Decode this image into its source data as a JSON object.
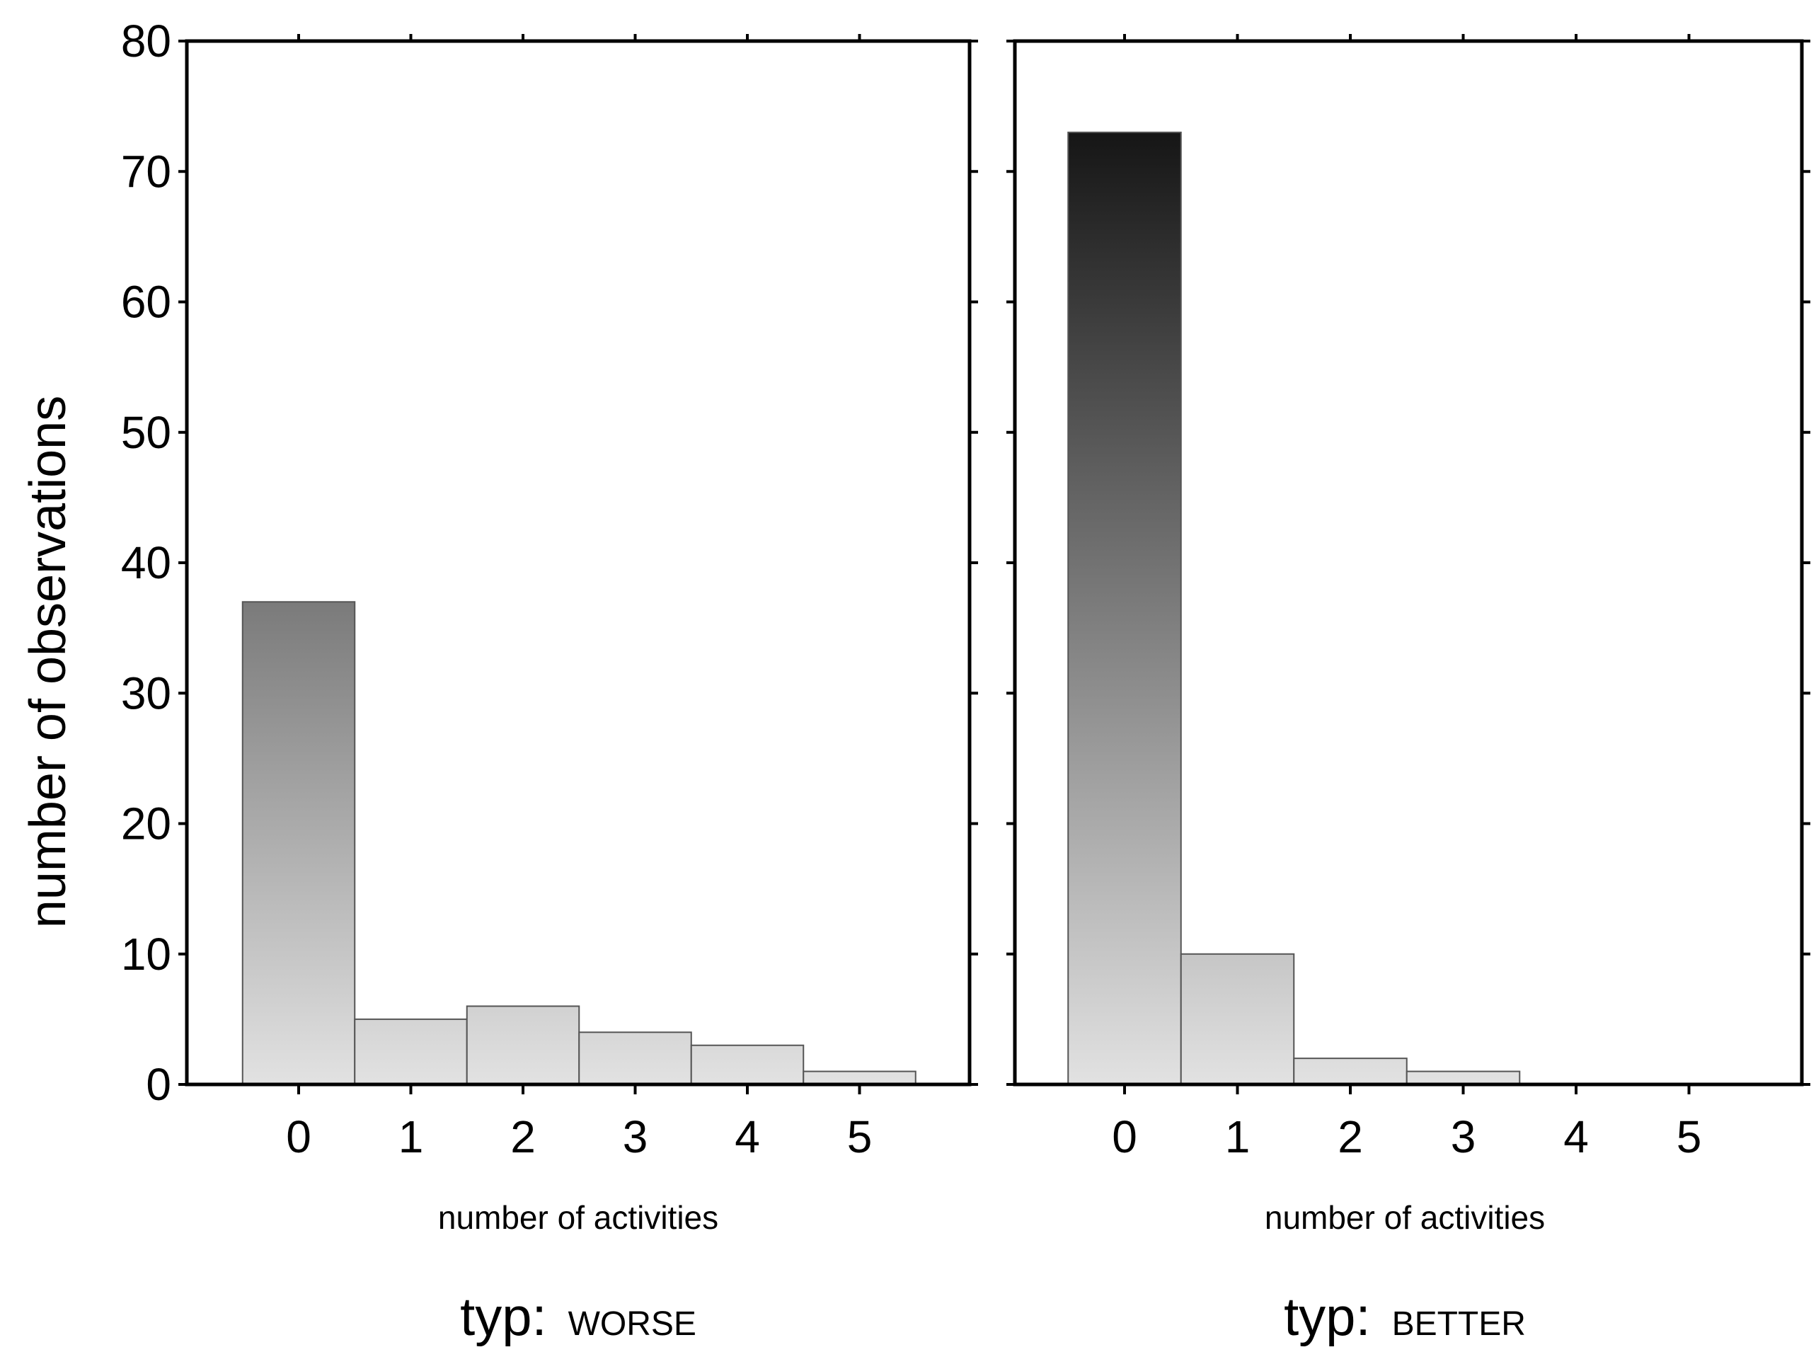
{
  "chart_data": {
    "type": "bar",
    "layout": "facets-side-by-side",
    "ylabel": "number of observations",
    "ylim": [
      0,
      80
    ],
    "yticks": [
      0,
      10,
      20,
      30,
      40,
      50,
      60,
      70,
      80
    ],
    "shared_max_for_shading": 73,
    "colors": {
      "bar_light": "#e2e2e2",
      "bar_dark": "#151515",
      "frame": "#000000"
    },
    "panels": [
      {
        "facet_prefix": "typ:",
        "facet_value": "WORSE",
        "xlabel": "number of activities",
        "categories": [
          "0",
          "1",
          "2",
          "3",
          "4",
          "5"
        ],
        "values": [
          37,
          5,
          6,
          4,
          3,
          1
        ]
      },
      {
        "facet_prefix": "typ:",
        "facet_value": "BETTER",
        "xlabel": "number of activities",
        "categories": [
          "0",
          "1",
          "2",
          "3",
          "4",
          "5"
        ],
        "values": [
          73,
          10,
          2,
          1,
          0,
          0
        ]
      }
    ]
  }
}
